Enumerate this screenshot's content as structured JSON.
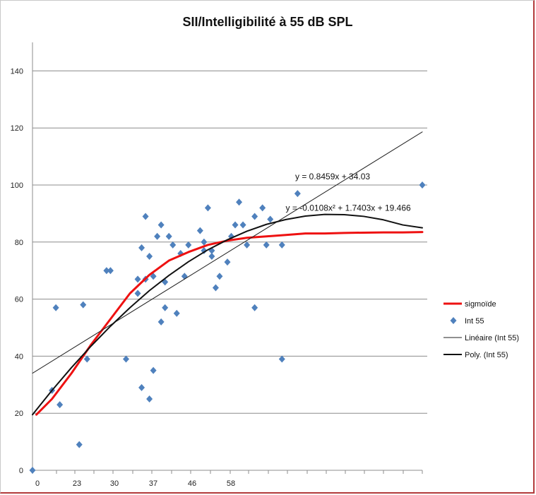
{
  "chart_data": {
    "type": "scatter",
    "title": "SII/Intelligibilité à 55 dB SPL",
    "xlabel": "",
    "ylabel": "",
    "xlim": [
      0,
      100
    ],
    "ylim": [
      0,
      150
    ],
    "y_ticks": [
      0,
      20,
      40,
      60,
      80,
      100,
      120,
      140
    ],
    "x_tick_labels": [
      "0",
      "23",
      "30",
      "37",
      "46",
      "58"
    ],
    "grid": "horizontal",
    "legend_position": "right",
    "series": [
      {
        "name": "Int 55",
        "kind": "scatter",
        "color": "#4f81bd",
        "x": [
          0,
          5,
          6,
          7,
          12,
          13,
          14,
          19,
          20,
          24,
          28,
          27,
          29,
          27,
          30,
          29,
          30,
          28,
          31,
          31,
          32,
          33,
          34,
          34,
          33,
          36,
          35,
          38,
          39,
          37,
          40,
          44,
          45,
          43,
          44,
          46,
          46,
          48,
          47,
          51,
          50,
          52,
          53,
          54,
          55,
          57,
          59,
          60,
          61,
          57,
          64,
          64,
          68,
          100
        ],
        "y": [
          0,
          28,
          57,
          23,
          9,
          58,
          39,
          70,
          70,
          39,
          78,
          67,
          67,
          62,
          75,
          89,
          25,
          29,
          35,
          68,
          82,
          52,
          66,
          57,
          86,
          79,
          82,
          76,
          68,
          55,
          79,
          77,
          92,
          84,
          80,
          75,
          77,
          68,
          64,
          82,
          73,
          86,
          94,
          86,
          79,
          89,
          92,
          79,
          88,
          57,
          79,
          39,
          97,
          100
        ]
      },
      {
        "name": "sigmoïde",
        "kind": "line",
        "color": "#ee1111",
        "x": [
          1,
          5,
          10,
          15,
          20,
          25,
          30,
          35,
          40,
          45,
          50,
          55,
          60,
          65,
          70,
          75,
          80,
          85,
          90,
          95,
          100
        ],
        "y": [
          19.5,
          25,
          34,
          44,
          53,
          62,
          68.5,
          73.5,
          76.5,
          79,
          80.5,
          81.5,
          82,
          82.5,
          83,
          83,
          83.2,
          83.3,
          83.4,
          83.4,
          83.5
        ]
      },
      {
        "name": "Linéaire (Int 55)",
        "kind": "line",
        "color": "#222222",
        "x": [
          0,
          100
        ],
        "y": [
          34.03,
          118.62
        ]
      },
      {
        "name": "Poly. (Int 55)",
        "kind": "line",
        "color": "#111111",
        "x": [
          0,
          5,
          10,
          15,
          20,
          25,
          30,
          35,
          40,
          45,
          50,
          55,
          60,
          65,
          70,
          75,
          80,
          85,
          90,
          95,
          100
        ],
        "y": [
          19.5,
          28,
          36,
          43.5,
          50.5,
          57,
          63,
          68.3,
          73.1,
          77.3,
          80.8,
          83.8,
          86.2,
          87.9,
          89.1,
          89.7,
          89.6,
          89,
          87.8,
          86,
          85
        ]
      }
    ],
    "annotations": [
      {
        "text": "y = 0.8459x + 34.03",
        "x": 77,
        "y": 102
      },
      {
        "text": "y = -0.0108x² + 1.7403x + 19.466",
        "x": 81,
        "y": 91
      }
    ]
  }
}
